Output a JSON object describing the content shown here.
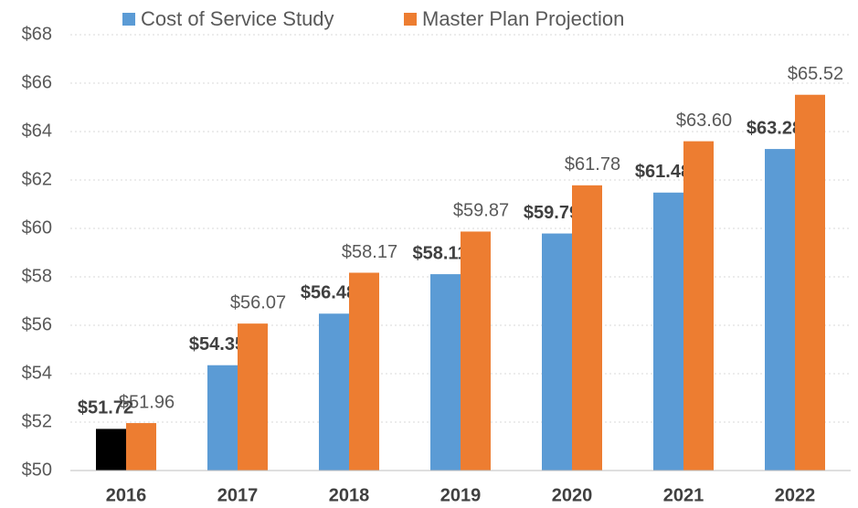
{
  "chart_data": {
    "type": "bar",
    "categories": [
      "2016",
      "2017",
      "2018",
      "2019",
      "2020",
      "2021",
      "2022"
    ],
    "series": [
      {
        "name": "Cost of Service Study",
        "color": "#5b9bd5",
        "point_colors": [
          "#000000",
          "#5b9bd5",
          "#5b9bd5",
          "#5b9bd5",
          "#5b9bd5",
          "#5b9bd5",
          "#5b9bd5"
        ],
        "values": [
          51.72,
          54.35,
          56.48,
          58.11,
          59.79,
          61.48,
          63.28
        ],
        "value_labels": [
          "$51.72",
          "$54.35",
          "$56.48",
          "$58.11",
          "$59.79",
          "$61.48",
          "$63.28"
        ]
      },
      {
        "name": "Master Plan Projection",
        "color": "#ed7d31",
        "values": [
          51.96,
          56.07,
          58.17,
          59.87,
          61.78,
          63.6,
          65.52
        ],
        "value_labels": [
          "$51.96",
          "$56.07",
          "$58.17",
          "$59.87",
          "$61.78",
          "$63.60",
          "$65.52"
        ]
      }
    ],
    "ylim": [
      50,
      68
    ],
    "yticks": [
      {
        "value": 50,
        "label": "$50"
      },
      {
        "value": 52,
        "label": "$52"
      },
      {
        "value": 54,
        "label": "$54"
      },
      {
        "value": 56,
        "label": "$56"
      },
      {
        "value": 58,
        "label": "$58"
      },
      {
        "value": 60,
        "label": "$60"
      },
      {
        "value": 62,
        "label": "$62"
      },
      {
        "value": 64,
        "label": "$64"
      },
      {
        "value": 66,
        "label": "$66"
      },
      {
        "value": 68,
        "label": "$68"
      }
    ],
    "grid": true,
    "legend": "top"
  }
}
